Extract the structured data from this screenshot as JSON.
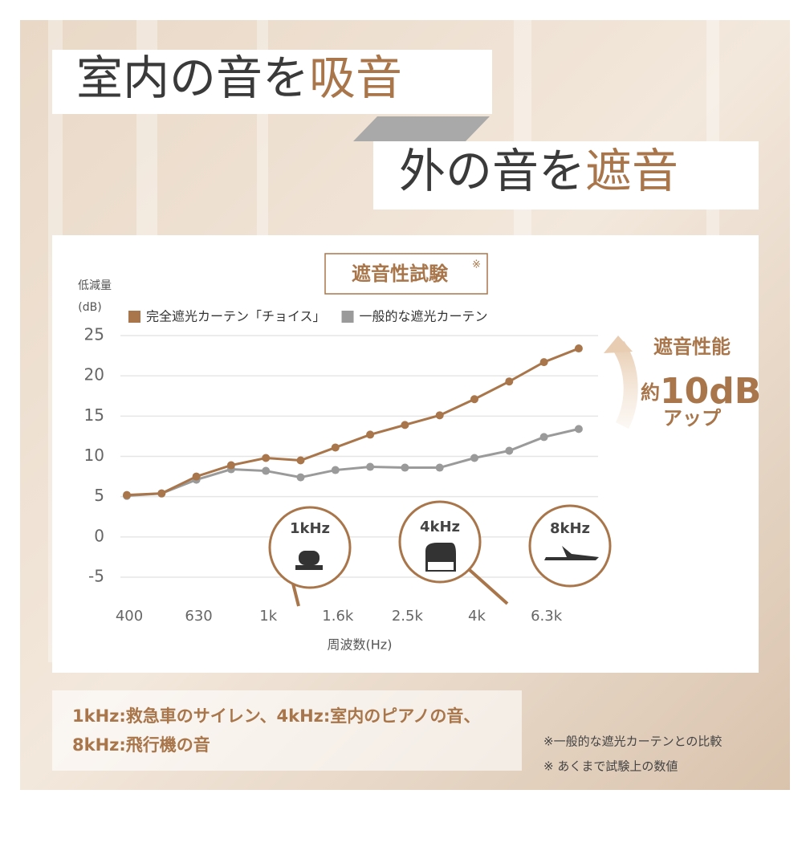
{
  "header": {
    "line1": [
      "室内の音を",
      "吸音"
    ],
    "line2": [
      "外の音を",
      "遮音"
    ]
  },
  "chart_data": {
    "type": "line",
    "title": "遮音性試験",
    "title_note": "※",
    "y_label": [
      "低減量",
      "(dB)"
    ],
    "x_label": "周波数(Hz)",
    "categories": [
      "400",
      null,
      "630",
      null,
      "1k",
      null,
      "1.6k",
      null,
      "2.5k",
      null,
      "4k",
      null,
      "6.3k",
      null
    ],
    "series": [
      {
        "name": "完全遮光カーテン「チョイス」",
        "color": "#a8764a",
        "values": [
          5.2,
          5.4,
          7.5,
          8.9,
          9.8,
          9.5,
          11.1,
          12.7,
          13.9,
          15.1,
          17.1,
          19.3,
          21.7,
          23.4
        ]
      },
      {
        "name": "一般的な遮光カーテン",
        "color": "#9a9a9a",
        "values": [
          5.1,
          5.4,
          7.1,
          8.4,
          8.2,
          7.4,
          8.3,
          8.7,
          8.6,
          8.6,
          9.8,
          10.7,
          12.4,
          13.4
        ]
      }
    ],
    "ylim": [
      -5,
      25
    ],
    "yticks": [
      -5,
      0,
      5,
      10,
      15,
      20,
      25
    ],
    "grid": true,
    "annotation": [
      "遮音性能",
      "約",
      "10dB",
      "アップ"
    ],
    "callouts": [
      "1kHz",
      "4kHz",
      "8kHz"
    ]
  },
  "footer": {
    "lines": [
      "1kHz:救急車のサイレン、4kHz:室内のピアノの音、",
      "8kHz:飛行機の音"
    ],
    "notes": [
      "※一般的な遮光カーテンとの比較",
      "※ あくまで試験上の数値"
    ]
  }
}
